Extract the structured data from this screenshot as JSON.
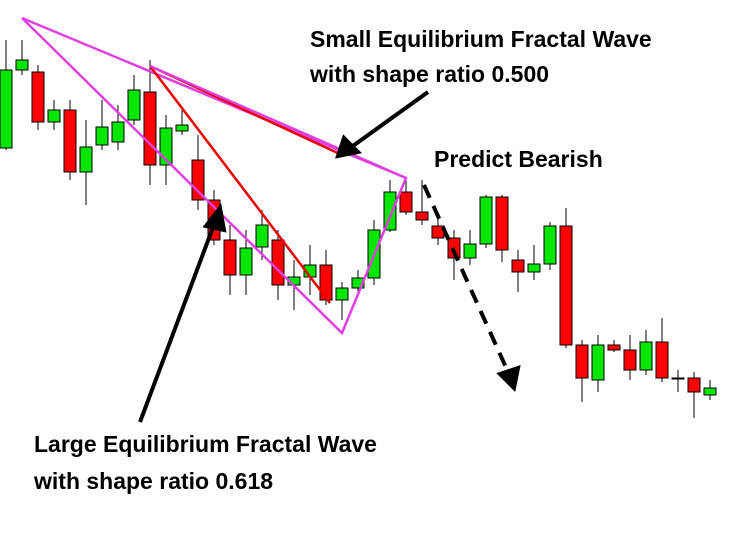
{
  "chart_data": {
    "type": "candlestick",
    "annotations": [
      "Small Equilibrium Fractal Wave",
      "with shape ratio 0.500",
      "Predict Bearish",
      "Large Equilibrium Fractal Wave",
      "with shape ratio 0.618"
    ],
    "open": [
      410,
      488,
      486,
      436,
      448,
      386,
      413,
      416,
      438,
      466,
      393,
      427,
      398,
      358,
      318,
      283,
      311,
      318,
      273,
      281,
      293,
      258,
      270,
      280,
      328,
      366,
      346,
      332,
      320,
      300,
      314,
      361,
      298,
      286,
      294,
      332,
      213,
      178,
      213,
      208,
      188,
      216,
      180,
      180,
      163
    ],
    "high": [
      518,
      518,
      493,
      458,
      458,
      438,
      458,
      453,
      483,
      498,
      443,
      448,
      423,
      368,
      333,
      328,
      348,
      328,
      298,
      313,
      308,
      276,
      288,
      338,
      378,
      378,
      378,
      343,
      328,
      328,
      363,
      363,
      308,
      313,
      336,
      350,
      218,
      223,
      218,
      223,
      228,
      240,
      188,
      186,
      178
    ],
    "low": [
      408,
      483,
      428,
      428,
      378,
      353,
      408,
      408,
      433,
      373,
      373,
      423,
      348,
      313,
      263,
      263,
      298,
      258,
      248,
      263,
      253,
      238,
      263,
      273,
      326,
      343,
      333,
      313,
      278,
      293,
      310,
      296,
      266,
      278,
      288,
      210,
      156,
      166,
      206,
      178,
      183,
      176,
      166,
      140,
      158
    ],
    "close": [
      488,
      498,
      436,
      448,
      386,
      411,
      431,
      436,
      468,
      393,
      430,
      433,
      358,
      318,
      283,
      310,
      333,
      273,
      281,
      293,
      258,
      270,
      280,
      328,
      366,
      346,
      338,
      320,
      300,
      314,
      361,
      308,
      286,
      294,
      332,
      213,
      180,
      213,
      208,
      188,
      216,
      180,
      180,
      166,
      170
    ],
    "ylim": [
      0,
      558
    ],
    "up_color": "#00e600",
    "down_color": "#ff0000"
  }
}
